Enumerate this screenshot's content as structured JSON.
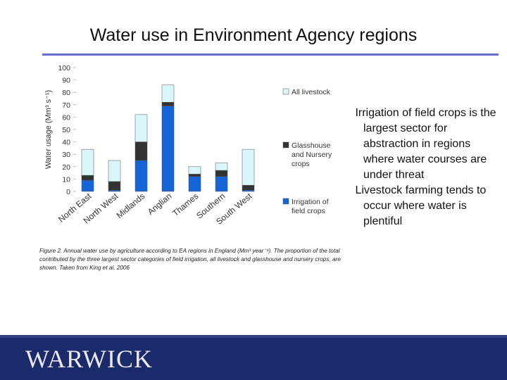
{
  "slide": {
    "title": "Water use in Environment Agency regions",
    "caption": "Figure 2. Annual water use by agriculture according to EA regions in England (Mm³ year⁻¹). The proportion of the total contributed by the three largest sector categories of field irrigation, all livestock and glasshouse and nursery crops, are shown. Taken from King et al, 2006",
    "bullets": [
      "Irrigation of field crops is the largest sector for abstraction in regions where water courses are under threat",
      "Livestock farming tends to occur where water is plentiful"
    ],
    "logo_text": "WARWICK"
  },
  "colors": {
    "irrigation": "#1565d8",
    "glasshouse": "#333333",
    "livestock": "#d9f7fb",
    "title_rule": "#6b6bd0",
    "footer": "#1b2a6b"
  },
  "chart_data": {
    "type": "bar",
    "stacked": true,
    "title": "",
    "ylabel": "Water usage (Mm³ s⁻¹)",
    "xlabel": "",
    "ylim": [
      0,
      100
    ],
    "yticks": [
      0,
      10,
      20,
      30,
      40,
      50,
      60,
      70,
      80,
      90,
      100
    ],
    "categories": [
      "North East",
      "North West",
      "Midlands",
      "Anglian",
      "Thames",
      "Southern",
      "South West"
    ],
    "series": [
      {
        "name": "Irrigation of field crops",
        "color": "#1565d8",
        "values": [
          9,
          1,
          25,
          69,
          12,
          12,
          1
        ]
      },
      {
        "name": "Glasshouse and Nursery crops",
        "color": "#333333",
        "values": [
          4,
          7,
          15,
          3,
          2,
          5,
          4
        ]
      },
      {
        "name": "All livestock",
        "color": "#d9f7fb",
        "values": [
          21,
          17,
          22,
          14,
          6,
          6,
          29
        ]
      }
    ],
    "legend": [
      "All livestock",
      "Glasshouse and Nursery crops",
      "Irrigation of field crops"
    ],
    "legend_position": "right",
    "grid": false
  }
}
